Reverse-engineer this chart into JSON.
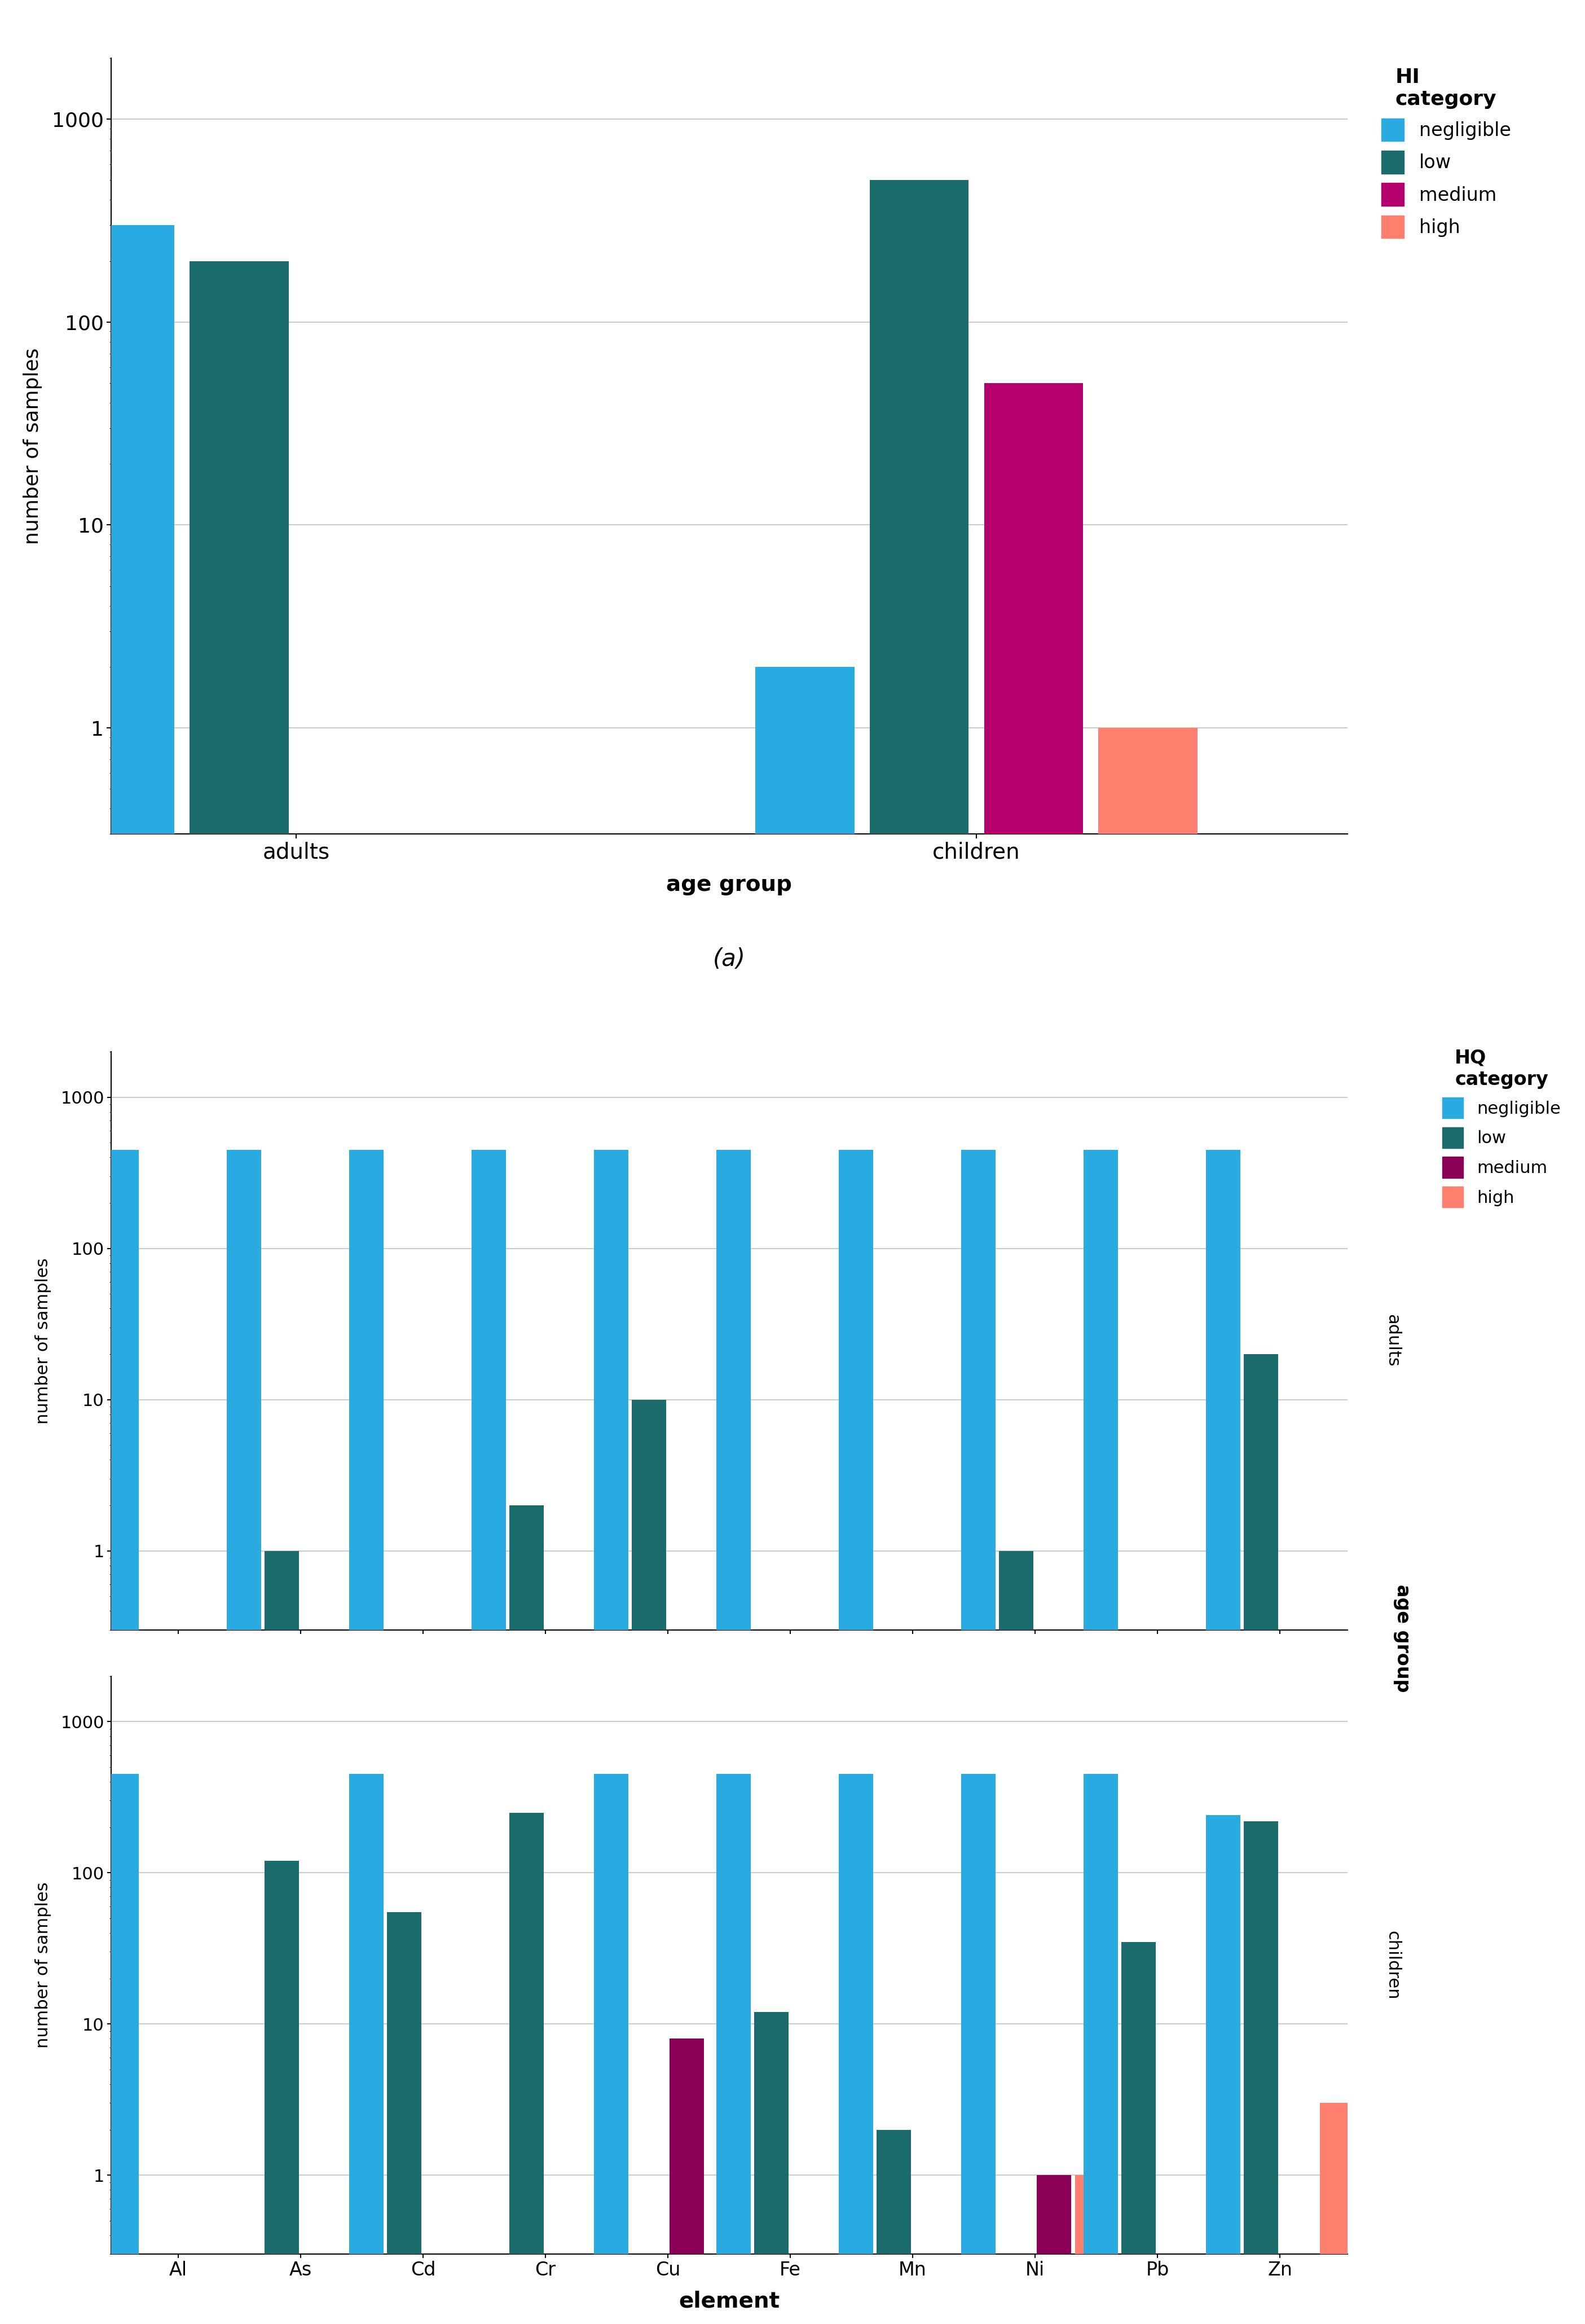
{
  "panel_a": {
    "title": "HI\ncategory",
    "age_groups": [
      "adults",
      "children"
    ],
    "categories": [
      "negligible",
      "low",
      "medium",
      "high"
    ],
    "colors": [
      "#29ABE2",
      "#1A6B6B",
      "#B5006E",
      "#FF7F6E"
    ],
    "values": {
      "adults": [
        300,
        200,
        0,
        0
      ],
      "children": [
        2,
        500,
        50,
        1
      ]
    },
    "ylabel": "number of samples",
    "xlabel": "age group",
    "ylim_low": 0.3,
    "ylim_high": 2000,
    "yticks": [
      1,
      10,
      100,
      1000
    ]
  },
  "panel_b": {
    "title": "HQ\ncategory",
    "elements": [
      "Al",
      "As",
      "Cd",
      "Cr",
      "Cu",
      "Fe",
      "Mn",
      "Ni",
      "Pb",
      "Zn"
    ],
    "categories": [
      "negligible",
      "low",
      "medium",
      "high"
    ],
    "colors": [
      "#29ABE2",
      "#1A6B6B",
      "#8B0057",
      "#FF7F6E"
    ],
    "adults": {
      "negligible": [
        450,
        450,
        450,
        450,
        450,
        450,
        450,
        450,
        450,
        450
      ],
      "low": [
        0,
        1,
        0,
        2,
        10,
        0,
        0,
        1,
        0,
        20
      ],
      "medium": [
        0,
        0,
        0,
        0,
        0,
        0,
        0,
        0,
        0,
        0
      ],
      "high": [
        0,
        0,
        0,
        0,
        0,
        0,
        0,
        0,
        0,
        0
      ]
    },
    "children": {
      "negligible": [
        450,
        0,
        450,
        0,
        450,
        450,
        450,
        450,
        450,
        240
      ],
      "low": [
        0,
        120,
        55,
        250,
        0,
        12,
        2,
        0,
        35,
        220
      ],
      "medium": [
        0,
        0,
        0,
        0,
        8,
        0,
        0,
        1,
        0,
        0
      ],
      "high": [
        0,
        0,
        0,
        0,
        0,
        0,
        0,
        1,
        0,
        3
      ]
    },
    "ylabel": "number of samples",
    "xlabel": "element",
    "ylim_low": 0.3,
    "ylim_high": 2000,
    "yticks": [
      1,
      10,
      100,
      1000
    ]
  }
}
